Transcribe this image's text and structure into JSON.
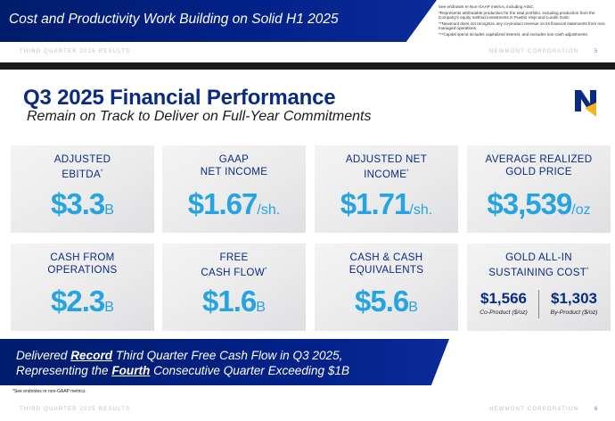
{
  "previous_slide": {
    "banner_title": "Cost and Productivity Work Building on Solid H1 2025",
    "notes": [
      "See endnotes re Non-GAAP metrics, including AISC.",
      "*Represents attributable production for the total portfolio, including production from the Company's equity method investments in Pueblo Viejo and Lundin Gold.",
      "**Newmont does not recognize any co-product revenue on its financial statements from non-managed operations.",
      "***Capital spend includes capitalized interest, and excludes non-cash adjustments."
    ],
    "footer_left": "THIRD QUARTER 2025 RESULTS",
    "footer_right": "NEWMONT CORPORATION",
    "page_number": "5"
  },
  "slide": {
    "title": "Q3 2025 Financial Performance",
    "subtitle": "Remain on Track to Deliver on Full-Year Commitments",
    "logo_letter": "N",
    "cards": {
      "adjusted_ebitda": {
        "label_line1": "ADJUSTED",
        "label_line2": "EBITDA",
        "mark": "*",
        "value": "$3.3",
        "unit": "B"
      },
      "gaap_net_income": {
        "label_line1": "GAAP",
        "label_line2": "NET INCOME",
        "value": "$1.67",
        "unit": "/sh."
      },
      "adjusted_net_income": {
        "label_line1": "ADJUSTED NET",
        "label_line2": "INCOME",
        "mark": "*",
        "value": "$1.71",
        "unit": "/sh."
      },
      "gold_price": {
        "label_line1": "AVERAGE REALIZED",
        "label_line2": "GOLD PRICE",
        "value": "$3,539",
        "unit": "/oz"
      },
      "cash_from_operations": {
        "label_line1": "CASH FROM",
        "label_line2": "OPERATIONS",
        "value": "$2.3",
        "unit": "B"
      },
      "free_cash_flow": {
        "label_line1": "FREE",
        "label_line2": "CASH FLOW",
        "mark": "*",
        "value": "$1.6",
        "unit": "B"
      },
      "cash_equivalents": {
        "label_line1": "CASH & CASH",
        "label_line2": "EQUIVALENTS",
        "value": "$5.6",
        "unit": "B"
      },
      "aisc": {
        "label_line1": "GOLD ALL-IN",
        "label_line2": "SUSTAINING COST",
        "mark": "*",
        "co_product_value": "$1,566",
        "co_product_label": "Co-Product ($/oz)",
        "by_product_value": "$1,303",
        "by_product_label": "By-Product ($/oz)"
      }
    },
    "banner": {
      "line1_pre": "Delivered ",
      "line1_em": "Record",
      "line1_post": " Third Quarter Free Cash Flow in Q3 2025,",
      "line2_pre": "Representing the ",
      "line2_em": "Fourth",
      "line2_post": " Consecutive Quarter Exceeding $1B"
    },
    "footnote": "*See endnotes re non-GAAP metrics.",
    "footer_left": "THIRD QUARTER 2025 RESULTS",
    "footer_right": "NEWMONT CORPORATION",
    "page_number": "6"
  },
  "colors": {
    "navy": "#0b2a83",
    "accent_blue": "#26a4e2",
    "banner_navy": "#02228a",
    "logo_gold": "#f3b51b"
  }
}
